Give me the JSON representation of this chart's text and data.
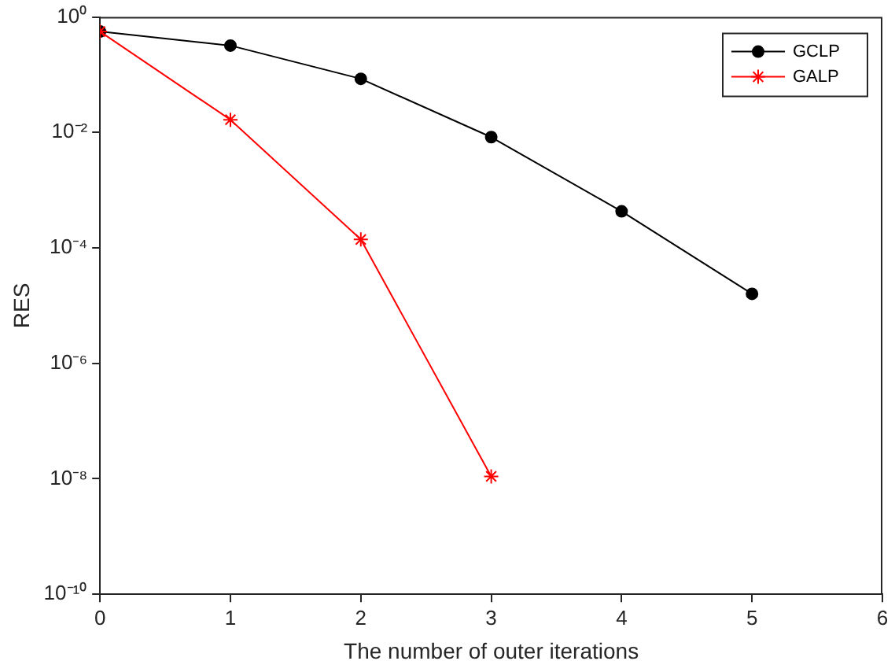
{
  "chart_data": {
    "type": "line",
    "xlabel": "The number of outer iterations",
    "ylabel": "RES",
    "log": "y",
    "grid": false,
    "legend": "top right",
    "xlim": [
      0,
      6
    ],
    "xticks": [
      0,
      1,
      2,
      3,
      4,
      5,
      6
    ],
    "ylim": [
      1e-10,
      1
    ],
    "yticks": [
      {
        "value": 1e-10,
        "label": "10⁻¹⁰"
      },
      {
        "value": 1e-08,
        "label": "10⁻⁸"
      },
      {
        "value": 1e-06,
        "label": "10⁻⁶"
      },
      {
        "value": 0.0001,
        "label": "10⁻⁴"
      },
      {
        "value": 0.01,
        "label": "10⁻²"
      },
      {
        "value": 1,
        "label": "10⁰"
      }
    ],
    "series": [
      {
        "name": "GCLP",
        "color": "#000000",
        "marker": "circle",
        "x": [
          0,
          1,
          2,
          3,
          4,
          5
        ],
        "values": [
          0.56,
          0.32,
          0.085,
          0.0083,
          0.00043,
          1.6e-05
        ]
      },
      {
        "name": "GALP",
        "color": "#ff0000",
        "marker": "cross",
        "x": [
          0,
          1,
          2,
          3
        ],
        "values": [
          0.56,
          0.0166,
          0.00014,
          1.1e-08
        ]
      }
    ]
  }
}
